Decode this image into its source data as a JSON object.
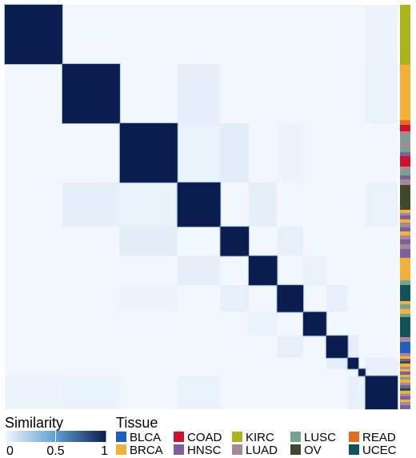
{
  "chart_data": {
    "type": "heatmap",
    "title": "",
    "xlabel": "",
    "ylabel": "",
    "value_range": [
      0,
      1
    ],
    "color_low": "#f2f7fd",
    "color_mid": "#5f9fd1",
    "color_high": "#0b1c4f",
    "block_sizes": [
      75,
      75,
      75,
      56,
      37,
      37,
      34,
      30,
      28,
      14,
      9,
      42
    ],
    "side_annotation": "tissue",
    "legend_similarity": {
      "title": "Similarity",
      "ticks": [
        "0",
        "0.5",
        "1"
      ],
      "tick_values": [
        0,
        0.5,
        1
      ]
    },
    "legend_tissue": {
      "title": "Tissue",
      "entries": [
        {
          "label": "BLCA",
          "color": "#1f5fc2"
        },
        {
          "label": "BRCA",
          "color": "#f3b13a"
        },
        {
          "label": "COAD",
          "color": "#d0112b"
        },
        {
          "label": "HNSC",
          "color": "#7c5f9c"
        },
        {
          "label": "KIRC",
          "color": "#a8b61a"
        },
        {
          "label": "LUAD",
          "color": "#a58998"
        },
        {
          "label": "LUSC",
          "color": "#72a58b"
        },
        {
          "label": "OV",
          "color": "#3e4a2b"
        },
        {
          "label": "READ",
          "color": "#e66a1f"
        },
        {
          "label": "UCEC",
          "color": "#11535a"
        }
      ]
    }
  }
}
